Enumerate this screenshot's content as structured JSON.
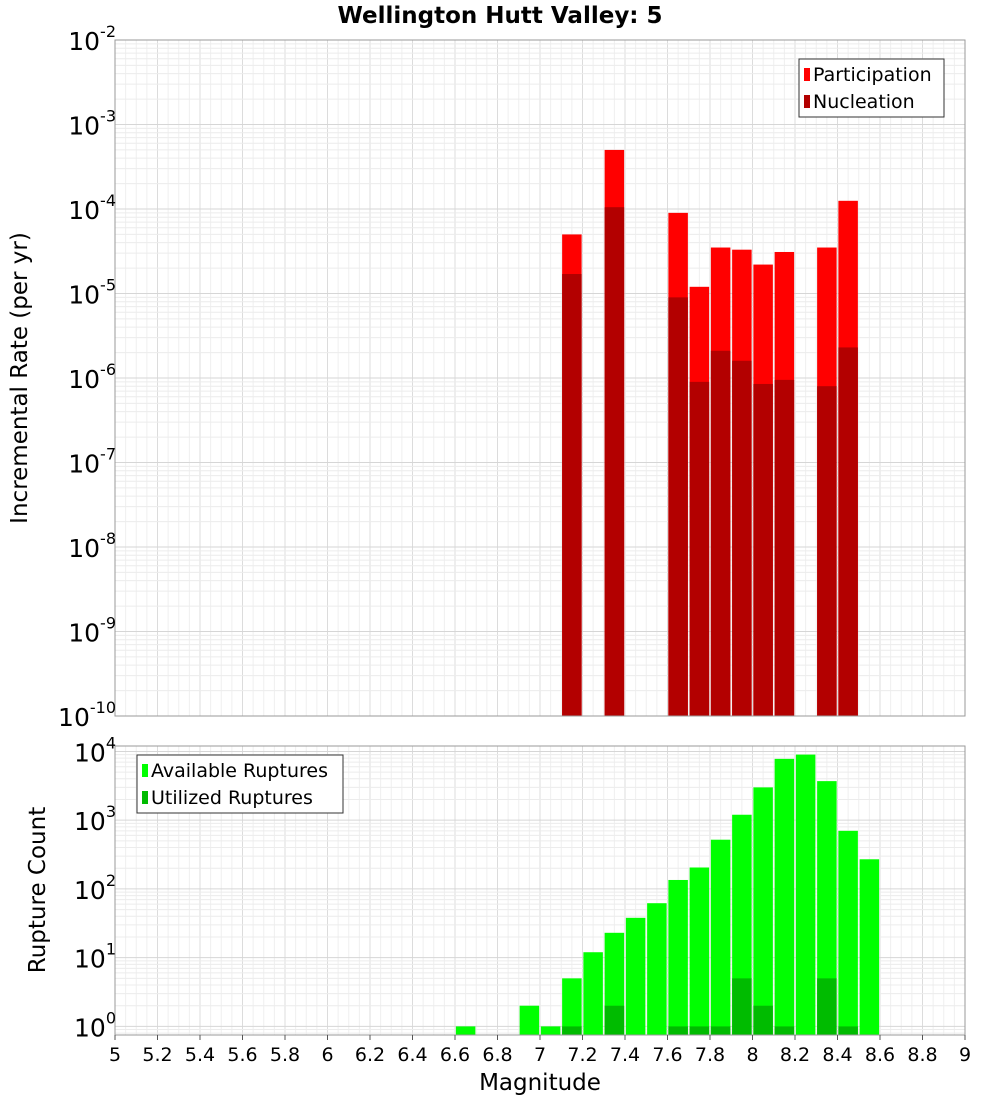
{
  "title": "Wellington Hutt Valley: 5",
  "chart_data": [
    {
      "type": "bar",
      "scale": "log",
      "ylabel": "Incremental Rate (per yr)",
      "ylim": [
        1e-10,
        0.01
      ],
      "y_ticks": [
        {
          "base": "10",
          "exp": "-2"
        },
        {
          "base": "10",
          "exp": "-3"
        },
        {
          "base": "10",
          "exp": "-4"
        },
        {
          "base": "10",
          "exp": "-5"
        },
        {
          "base": "10",
          "exp": "-6"
        },
        {
          "base": "10",
          "exp": "-7"
        },
        {
          "base": "10",
          "exp": "-8"
        },
        {
          "base": "10",
          "exp": "-9"
        },
        {
          "base": "10",
          "exp": "-10"
        }
      ],
      "legend_position": "top-right",
      "series": [
        {
          "name": "Participation",
          "color": "#ff0000",
          "x": [
            7.15,
            7.35,
            7.65,
            7.75,
            7.85,
            7.95,
            8.05,
            8.15,
            8.35,
            8.45
          ],
          "values": [
            5e-05,
            0.0005,
            9e-05,
            1.2e-05,
            3.5e-05,
            3.3e-05,
            2.2e-05,
            3.1e-05,
            3.5e-05,
            0.000125
          ]
        },
        {
          "name": "Nucleation",
          "color": "#b30000",
          "x": [
            7.15,
            7.35,
            7.65,
            7.75,
            7.85,
            7.95,
            8.05,
            8.15,
            8.35,
            8.45
          ],
          "values": [
            1.7e-05,
            0.000105,
            9e-06,
            9e-07,
            2.1e-06,
            1.6e-06,
            8.5e-07,
            9.5e-07,
            8e-07,
            2.3e-06
          ]
        }
      ]
    },
    {
      "type": "bar",
      "scale": "log",
      "ylabel": "Rupture Count",
      "xlabel": "Magnitude",
      "xlim": [
        5,
        9
      ],
      "ylim": [
        0.75,
        12000
      ],
      "x_ticks": [
        "5",
        "5.2",
        "5.4",
        "5.6",
        "5.8",
        "6",
        "6.2",
        "6.4",
        "6.6",
        "6.8",
        "7",
        "7.2",
        "7.4",
        "7.6",
        "7.8",
        "8",
        "8.2",
        "8.4",
        "8.6",
        "8.8",
        "9"
      ],
      "y_ticks": [
        {
          "base": "10",
          "exp": "0"
        },
        {
          "base": "10",
          "exp": "1"
        },
        {
          "base": "10",
          "exp": "2"
        },
        {
          "base": "10",
          "exp": "3"
        },
        {
          "base": "10",
          "exp": "4"
        }
      ],
      "legend_position": "top-left",
      "series": [
        {
          "name": "Available Ruptures",
          "color": "#00ff00",
          "x": [
            6.65,
            6.95,
            7.05,
            7.15,
            7.25,
            7.35,
            7.45,
            7.55,
            7.65,
            7.75,
            7.85,
            7.95,
            8.05,
            8.15,
            8.25,
            8.35,
            8.45,
            8.55
          ],
          "values": [
            1,
            2,
            1,
            5,
            12,
            23,
            38,
            62,
            135,
            205,
            520,
            1200,
            3000,
            7800,
            9000,
            3700,
            700,
            270
          ]
        },
        {
          "name": "Utilized Ruptures",
          "color": "#00bb00",
          "x": [
            7.15,
            7.35,
            7.65,
            7.75,
            7.85,
            7.95,
            8.05,
            8.15,
            8.35,
            8.45
          ],
          "values": [
            1,
            2,
            1,
            1,
            1,
            5,
            2,
            1,
            5,
            1
          ]
        }
      ]
    }
  ]
}
